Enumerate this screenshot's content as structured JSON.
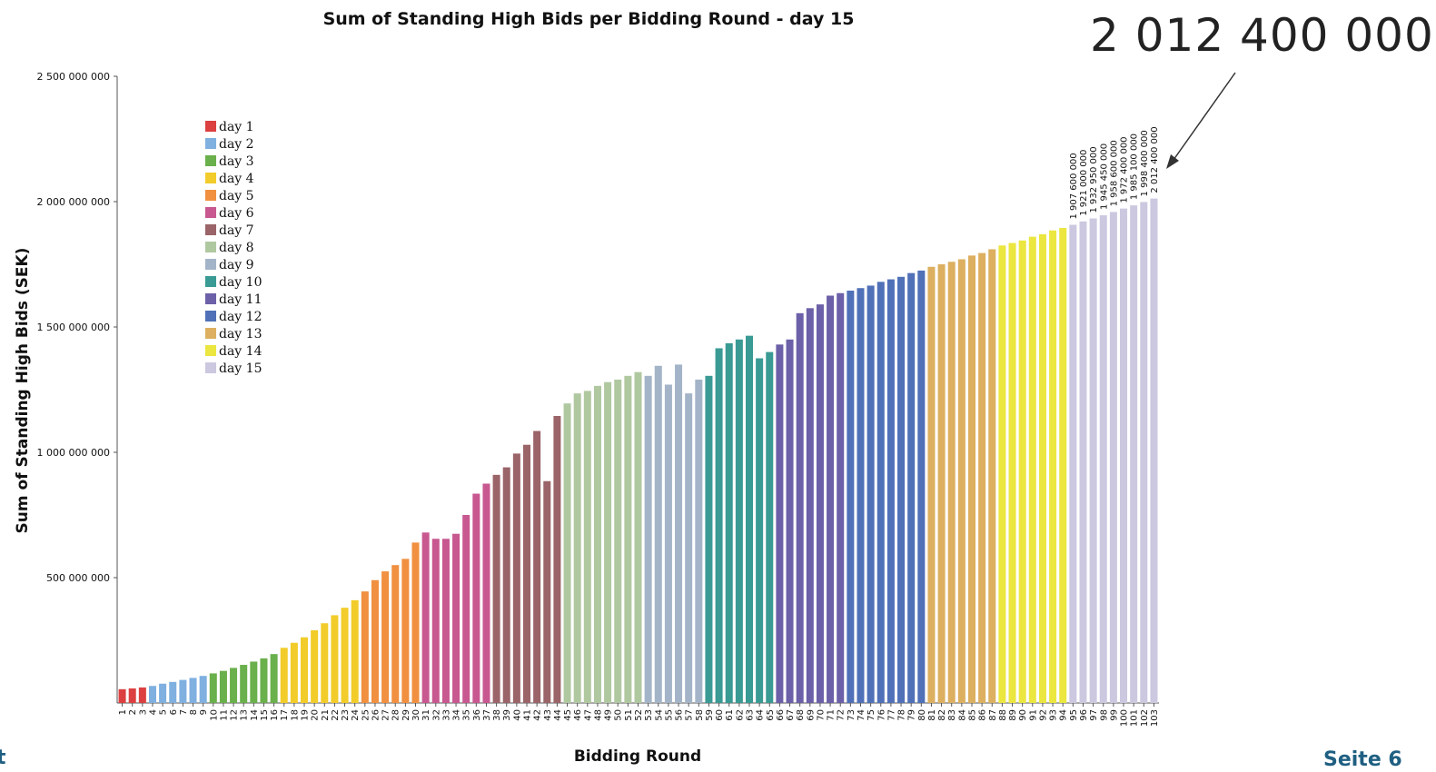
{
  "chart_data": {
    "type": "bar",
    "title": "Sum of Standing High Bids per Bidding Round - day 15",
    "xlabel": "Bidding Round",
    "ylabel": "Sum of Standing High Bids (SEK)",
    "ylim": [
      0,
      2500000000
    ],
    "yticks": [
      {
        "value": 500000000,
        "label": "500 000 000"
      },
      {
        "value": 1000000000,
        "label": "1 000 000 000"
      },
      {
        "value": 1500000000,
        "label": "1 500 000 000"
      },
      {
        "value": 2000000000,
        "label": "2 000 000 000"
      },
      {
        "value": 2500000000,
        "label": "2 500 000 000"
      }
    ],
    "grid": false,
    "legend_position": "top-left",
    "legend": [
      {
        "name": "day 1",
        "color": "#dc4040"
      },
      {
        "name": "day 2",
        "color": "#7fb0e0"
      },
      {
        "name": "day 3",
        "color": "#6ab04c"
      },
      {
        "name": "day 4",
        "color": "#f2cc2a"
      },
      {
        "name": "day 5",
        "color": "#f09040"
      },
      {
        "name": "day 6",
        "color": "#c85890"
      },
      {
        "name": "day 7",
        "color": "#9a6468"
      },
      {
        "name": "day 8",
        "color": "#b0c8a0"
      },
      {
        "name": "day 9",
        "color": "#a4b4c8"
      },
      {
        "name": "day 10",
        "color": "#3a9a94"
      },
      {
        "name": "day 11",
        "color": "#6c60a8"
      },
      {
        "name": "day 12",
        "color": "#5070b8"
      },
      {
        "name": "day 13",
        "color": "#dcb060"
      },
      {
        "name": "day 14",
        "color": "#ebe640"
      },
      {
        "name": "day 15",
        "color": "#ccc8e0"
      }
    ],
    "categories": [
      "1",
      "2",
      "3",
      "4",
      "5",
      "6",
      "7",
      "8",
      "9",
      "10",
      "11",
      "12",
      "13",
      "14",
      "15",
      "16",
      "17",
      "18",
      "19",
      "20",
      "21",
      "22",
      "23",
      "24",
      "25",
      "26",
      "27",
      "28",
      "29",
      "30",
      "31",
      "32",
      "33",
      "34",
      "35",
      "36",
      "37",
      "38",
      "39",
      "40",
      "41",
      "42",
      "43",
      "44",
      "45",
      "46",
      "47",
      "48",
      "49",
      "50",
      "51",
      "52",
      "53",
      "54",
      "55",
      "56",
      "57",
      "58",
      "59",
      "60",
      "61",
      "62",
      "63",
      "64",
      "65",
      "66",
      "67",
      "68",
      "69",
      "70",
      "71",
      "72",
      "73",
      "74",
      "75",
      "76",
      "77",
      "78",
      "79",
      "80",
      "81",
      "82",
      "83",
      "84",
      "85",
      "86",
      "87",
      "88",
      "89",
      "90",
      "91",
      "92",
      "93",
      "94",
      "95",
      "96",
      "97",
      "98",
      "99",
      "100",
      "101",
      "102",
      "103"
    ],
    "days": [
      1,
      1,
      1,
      2,
      2,
      2,
      2,
      2,
      2,
      3,
      3,
      3,
      3,
      3,
      3,
      3,
      4,
      4,
      4,
      4,
      4,
      4,
      4,
      4,
      5,
      5,
      5,
      5,
      5,
      5,
      6,
      6,
      6,
      6,
      6,
      6,
      6,
      7,
      7,
      7,
      7,
      7,
      7,
      7,
      8,
      8,
      8,
      8,
      8,
      8,
      8,
      8,
      9,
      9,
      9,
      9,
      9,
      9,
      10,
      10,
      10,
      10,
      10,
      10,
      10,
      11,
      11,
      11,
      11,
      11,
      11,
      11,
      12,
      12,
      12,
      12,
      12,
      12,
      12,
      12,
      13,
      13,
      13,
      13,
      13,
      13,
      13,
      14,
      14,
      14,
      14,
      14,
      14,
      14,
      15,
      15,
      15,
      15,
      15,
      15,
      15,
      15,
      15
    ],
    "values": [
      55000000,
      58000000,
      62000000,
      68000000,
      77000000,
      84000000,
      92000000,
      100000000,
      108000000,
      118000000,
      128000000,
      140000000,
      152000000,
      165000000,
      178000000,
      195000000,
      220000000,
      240000000,
      262000000,
      290000000,
      318000000,
      350000000,
      380000000,
      410000000,
      445000000,
      490000000,
      525000000,
      550000000,
      575000000,
      640000000,
      680000000,
      655000000,
      655000000,
      675000000,
      750000000,
      835000000,
      875000000,
      910000000,
      940000000,
      995000000,
      1030000000,
      1085000000,
      885000000,
      1145000000,
      1195000000,
      1235000000,
      1245000000,
      1265000000,
      1280000000,
      1290000000,
      1305000000,
      1320000000,
      1305000000,
      1345000000,
      1270000000,
      1350000000,
      1235000000,
      1290000000,
      1305000000,
      1415000000,
      1435000000,
      1450000000,
      1465000000,
      1375000000,
      1400000000,
      1430000000,
      1450000000,
      1555000000,
      1575000000,
      1590000000,
      1625000000,
      1635000000,
      1645000000,
      1655000000,
      1665000000,
      1680000000,
      1690000000,
      1700000000,
      1715000000,
      1725000000,
      1740000000,
      1750000000,
      1760000000,
      1770000000,
      1785000000,
      1795000000,
      1810000000,
      1825000000,
      1835000000,
      1845000000,
      1860000000,
      1870000000,
      1885000000,
      1895000000,
      1907600000,
      1921000000,
      1932950000,
      1945450000,
      1958600000,
      1972400000,
      1985100000,
      1998400000,
      2012400000
    ],
    "bar_labels": [
      {
        "index": 94,
        "text": "1 907 600 000"
      },
      {
        "index": 95,
        "text": "1 921 000 000"
      },
      {
        "index": 96,
        "text": "1 932 950 000"
      },
      {
        "index": 97,
        "text": "1 945 450 000"
      },
      {
        "index": 98,
        "text": "1 958 600 000"
      },
      {
        "index": 99,
        "text": "1 972 400 000"
      },
      {
        "index": 100,
        "text": "1 985 100 000"
      },
      {
        "index": 101,
        "text": "1 998 400 000"
      },
      {
        "index": 102,
        "text": "2 012 400 000"
      }
    ]
  },
  "callout": {
    "text": "2 012 400 000"
  },
  "footer": {
    "left": "t",
    "right": "Seite 6"
  }
}
